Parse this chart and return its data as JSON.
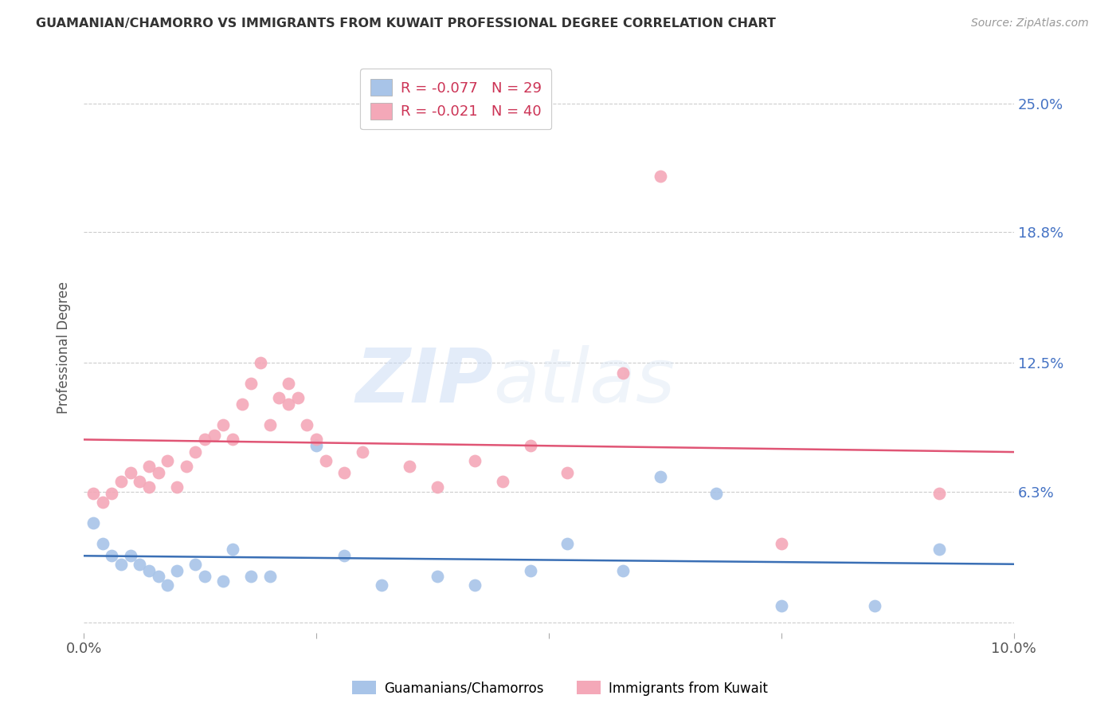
{
  "title": "GUAMANIAN/CHAMORRO VS IMMIGRANTS FROM KUWAIT PROFESSIONAL DEGREE CORRELATION CHART",
  "source": "Source: ZipAtlas.com",
  "ylabel": "Professional Degree",
  "xlim": [
    0.0,
    0.1
  ],
  "ylim": [
    -0.005,
    0.27
  ],
  "yticks": [
    0.0,
    0.063,
    0.125,
    0.188,
    0.25
  ],
  "ytick_labels": [
    "",
    "6.3%",
    "12.5%",
    "18.8%",
    "25.0%"
  ],
  "xticks": [
    0.0,
    0.025,
    0.05,
    0.075,
    0.1
  ],
  "xtick_labels": [
    "0.0%",
    "",
    "",
    "",
    "10.0%"
  ],
  "legend_entries": [
    {
      "label": "R = -0.077   N = 29",
      "color": "#a8c4e8"
    },
    {
      "label": "R = -0.021   N = 40",
      "color": "#f4a8b8"
    }
  ],
  "legend_labels_bottom": [
    "Guamanians/Chamorros",
    "Immigrants from Kuwait"
  ],
  "blue_scatter_x": [
    0.001,
    0.002,
    0.003,
    0.004,
    0.005,
    0.006,
    0.007,
    0.008,
    0.009,
    0.01,
    0.012,
    0.013,
    0.015,
    0.016,
    0.018,
    0.02,
    0.025,
    0.028,
    0.032,
    0.038,
    0.042,
    0.048,
    0.052,
    0.058,
    0.062,
    0.068,
    0.075,
    0.085,
    0.092
  ],
  "blue_scatter_y": [
    0.048,
    0.038,
    0.032,
    0.028,
    0.032,
    0.028,
    0.025,
    0.022,
    0.018,
    0.025,
    0.028,
    0.022,
    0.02,
    0.035,
    0.022,
    0.022,
    0.085,
    0.032,
    0.018,
    0.022,
    0.018,
    0.025,
    0.038,
    0.025,
    0.07,
    0.062,
    0.008,
    0.008,
    0.035
  ],
  "pink_scatter_x": [
    0.001,
    0.002,
    0.003,
    0.004,
    0.005,
    0.006,
    0.007,
    0.007,
    0.008,
    0.009,
    0.01,
    0.011,
    0.012,
    0.013,
    0.014,
    0.015,
    0.016,
    0.017,
    0.018,
    0.019,
    0.02,
    0.021,
    0.022,
    0.022,
    0.023,
    0.024,
    0.025,
    0.026,
    0.028,
    0.03,
    0.035,
    0.038,
    0.042,
    0.045,
    0.048,
    0.052,
    0.058,
    0.062,
    0.075,
    0.092
  ],
  "pink_scatter_y": [
    0.062,
    0.058,
    0.062,
    0.068,
    0.072,
    0.068,
    0.075,
    0.065,
    0.072,
    0.078,
    0.065,
    0.075,
    0.082,
    0.088,
    0.09,
    0.095,
    0.088,
    0.105,
    0.115,
    0.125,
    0.095,
    0.108,
    0.115,
    0.105,
    0.108,
    0.095,
    0.088,
    0.078,
    0.072,
    0.082,
    0.075,
    0.065,
    0.078,
    0.068,
    0.085,
    0.072,
    0.12,
    0.215,
    0.038,
    0.062
  ],
  "blue_line_color": "#3a6fb5",
  "pink_line_color": "#e05575",
  "blue_scatter_color": "#a8c4e8",
  "pink_scatter_color": "#f4a8b8",
  "watermark_zip": "ZIP",
  "watermark_atlas": "atlas",
  "background_color": "#ffffff",
  "grid_color": "#cccccc",
  "pink_trend_y_start": 0.088,
  "pink_trend_y_end": 0.082,
  "blue_trend_y_start": 0.032,
  "blue_trend_y_end": 0.028
}
